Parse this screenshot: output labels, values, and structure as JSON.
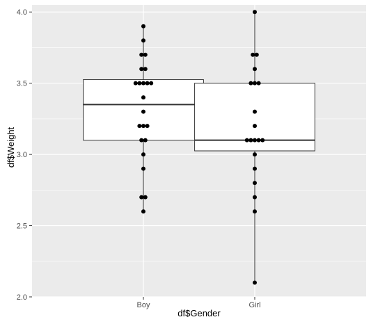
{
  "chart_data": {
    "type": "box",
    "categories": [
      "Boy",
      "Girl"
    ],
    "xlabel": "df$Gender",
    "ylabel": "df$Weight",
    "ylim": [
      2.0,
      4.05
    ],
    "yticks": [
      2.0,
      2.5,
      3.0,
      3.5,
      4.0
    ],
    "ytick_labels": [
      "2.0",
      "2.5",
      "3.0",
      "3.5",
      "4.0"
    ],
    "grid": true,
    "boxes": [
      {
        "category": "Boy",
        "whisker_low": 2.6,
        "q1": 3.1,
        "median": 3.35,
        "q3": 3.525,
        "whisker_high": 3.9
      },
      {
        "category": "Girl",
        "whisker_low": 2.1,
        "q1": 3.025,
        "median": 3.1,
        "q3": 3.5,
        "whisker_high": 4.0
      }
    ],
    "points": [
      {
        "category": "Boy",
        "values": [
          2.6,
          2.7,
          2.7,
          2.9,
          3.0,
          3.1,
          3.1,
          3.2,
          3.2,
          3.2,
          3.3,
          3.4,
          3.5,
          3.5,
          3.5,
          3.5,
          3.5,
          3.6,
          3.6,
          3.7,
          3.7,
          3.8,
          3.9
        ]
      },
      {
        "category": "Girl",
        "values": [
          2.1,
          2.6,
          2.7,
          2.8,
          2.9,
          3.0,
          3.1,
          3.1,
          3.1,
          3.1,
          3.1,
          3.2,
          3.3,
          3.5,
          3.5,
          3.5,
          3.6,
          3.7,
          3.7,
          4.0
        ]
      }
    ],
    "colors": {
      "panel": "#ebebeb",
      "grid_major": "#ffffff",
      "box_fill": "#ffffff",
      "box_stroke": "#333333",
      "point": "#000000",
      "tick_text": "#4d4d4d",
      "axis_title": "#000000"
    }
  }
}
